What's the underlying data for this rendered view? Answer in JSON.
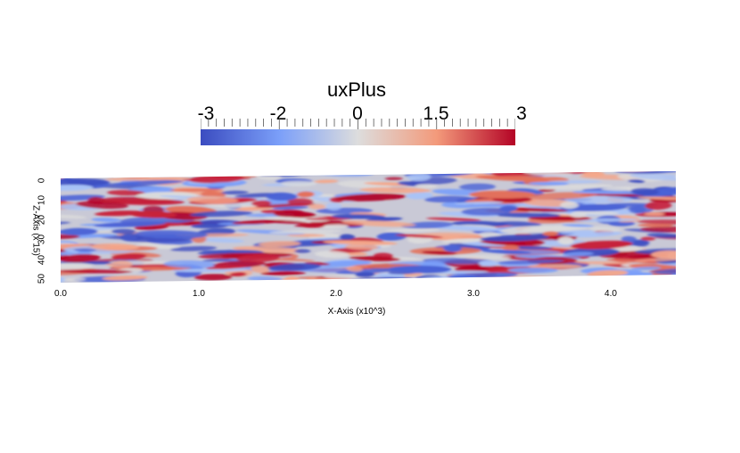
{
  "colorbar": {
    "title": "uxPlus",
    "tick_labels": [
      "-3",
      "-2",
      "0",
      "1.5",
      "3"
    ],
    "range": [
      -3,
      3
    ],
    "colors": {
      "low": "#3b4cc0",
      "mid": "#dddddd",
      "high": "#b40426"
    }
  },
  "axes": {
    "x_title": "X-Axis (x10^3)",
    "x_ticks": [
      "0.0",
      "1.0",
      "2.0",
      "3.0",
      "4.0"
    ],
    "z_title": "Z-Axis (x 15)",
    "z_ticks": [
      "0",
      "10",
      "20",
      "30",
      "40",
      "50"
    ]
  }
}
